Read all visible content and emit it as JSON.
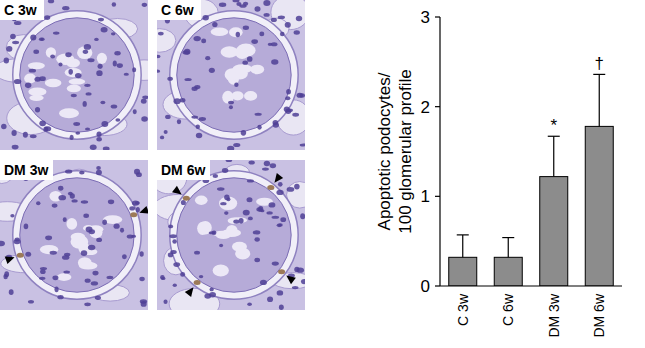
{
  "chart_data": {
    "type": "bar",
    "y_label": "Apoptotic podocytes/ 100 glomerular profile",
    "categories": [
      "C 3w",
      "C 6w",
      "DM 3w",
      "DM 6w"
    ],
    "values": [
      0.32,
      0.32,
      1.22,
      1.78
    ],
    "errors": [
      0.25,
      0.22,
      0.45,
      0.58
    ],
    "significance": [
      null,
      null,
      "*",
      "†"
    ],
    "color": "#8c8c8c",
    "ylim": [
      0,
      3
    ],
    "yticks": [
      0,
      1,
      2,
      3
    ],
    "grid": false
  },
  "micrographs": {
    "labels": [
      "C 3w",
      "C 6w",
      "DM 3w",
      "DM 6w"
    ]
  }
}
